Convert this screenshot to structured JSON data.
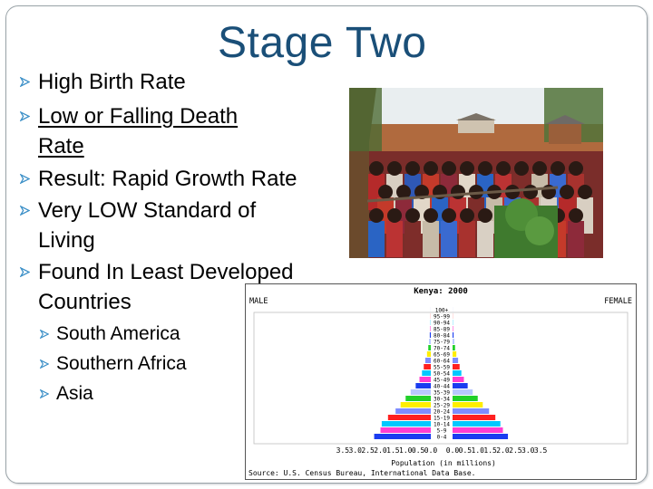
{
  "slide": {
    "title": "Stage Two",
    "bullets": [
      {
        "text": "High Birth Rate"
      },
      {
        "text_line1": "Low or Falling Death",
        "text_line2": "Rate"
      },
      {
        "text": "Result: Rapid Growth Rate"
      },
      {
        "text_line1": "Very LOW Standard of",
        "text_line2": "Living"
      },
      {
        "text_line1": "Found In Least Developed",
        "text_line2": "Countries"
      }
    ],
    "sub_bullets": [
      "South America",
      "Southern Africa",
      "Asia"
    ]
  },
  "colors": {
    "title": "#1a4f78",
    "bullet_mark": "#3b8fc7"
  },
  "chart_data": {
    "type": "bar",
    "title": "Kenya: 2000",
    "left_label": "MALE",
    "right_label": "FEMALE",
    "xlabel": "Population (in millions)",
    "source": "Source: U.S. Census Bureau, International Data Base.",
    "x_ticks": [
      "3.5",
      "3.0",
      "2.5",
      "2.0",
      "1.5",
      "1.0",
      "0.5",
      "0.0",
      "0.0",
      "0.5",
      "1.0",
      "1.5",
      "2.0",
      "2.5",
      "3.0",
      "3.5"
    ],
    "categories": [
      "0-4",
      "5-9",
      "10-14",
      "15-19",
      "20-24",
      "25-29",
      "30-34",
      "35-39",
      "40-44",
      "45-49",
      "50-54",
      "55-59",
      "60-64",
      "65-69",
      "70-74",
      "75-79",
      "80-84",
      "85-89",
      "90-94",
      "95-99",
      "100+"
    ],
    "series": [
      {
        "name": "MALE",
        "values": [
          2.25,
          2.0,
          1.95,
          1.7,
          1.4,
          1.2,
          1.0,
          0.8,
          0.6,
          0.45,
          0.35,
          0.28,
          0.22,
          0.15,
          0.1,
          0.07,
          0.04,
          0.02,
          0.01,
          0.005,
          0.002
        ]
      },
      {
        "name": "FEMALE",
        "values": [
          2.2,
          2.0,
          1.9,
          1.7,
          1.45,
          1.2,
          1.0,
          0.8,
          0.6,
          0.45,
          0.35,
          0.28,
          0.22,
          0.15,
          0.1,
          0.07,
          0.04,
          0.02,
          0.01,
          0.005,
          0.002
        ]
      }
    ],
    "bar_colors": [
      "#1a3cf0",
      "#ff3dd0",
      "#00c8ff",
      "#ff2020",
      "#7e8cff",
      "#ffee00",
      "#22d02a",
      "#b8c8ff",
      "#1a3cf0",
      "#ff3dd0",
      "#00c8ff",
      "#ff2020",
      "#7e8cff",
      "#ffee00",
      "#22d02a",
      "#b8c8ff",
      "#1a3cf0",
      "#ff3dd0",
      "#00c8ff",
      "#ff2020",
      "#7e8cff"
    ],
    "xlim": [
      0,
      3.5
    ]
  }
}
